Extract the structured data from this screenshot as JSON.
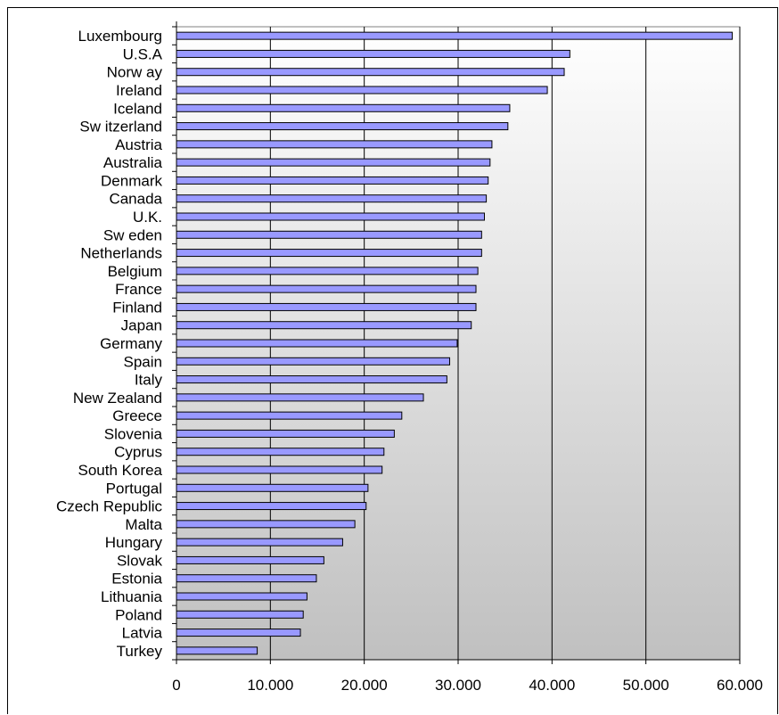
{
  "chart_data": {
    "type": "bar",
    "orientation": "horizontal",
    "title": "",
    "xlabel": "",
    "ylabel": "",
    "xlim": [
      0,
      60000
    ],
    "grid": true,
    "legend": "none",
    "bar_color": "#9999ff",
    "bar_edge_color": "#000000",
    "background_gradient": [
      "#ffffff",
      "#c0c0c0"
    ],
    "x_ticks": [
      0,
      10000,
      20000,
      30000,
      40000,
      50000,
      60000
    ],
    "x_tick_labels": [
      "0",
      "10.000",
      "20.000",
      "30.000",
      "40.000",
      "50.000",
      "60.000"
    ],
    "categories": [
      "Luxembourg",
      "U.S.A",
      "Norw ay",
      "Ireland",
      "Iceland",
      "Sw itzerland",
      "Austria",
      "Australia",
      "Denmark",
      "Canada",
      "U.K.",
      "Sw eden",
      "Netherlands",
      "Belgium",
      "France",
      "Finland",
      "Japan",
      "Germany",
      "Spain",
      "Italy",
      "New Zealand",
      "Greece",
      "Slovenia",
      "Cyprus",
      "South Korea",
      "Portugal",
      "Czech Republic",
      "Malta",
      "Hungary",
      "Slovak",
      "Estonia",
      "Lithuania",
      "Poland",
      "Latvia",
      "Turkey"
    ],
    "values": [
      59200,
      41900,
      41300,
      39500,
      35500,
      35300,
      33600,
      33400,
      33200,
      33000,
      32800,
      32500,
      32500,
      32100,
      31900,
      31900,
      31400,
      29900,
      29100,
      28800,
      26300,
      24000,
      23200,
      22100,
      21900,
      20400,
      20200,
      19000,
      17700,
      15700,
      14900,
      13900,
      13500,
      13200,
      8600
    ]
  }
}
